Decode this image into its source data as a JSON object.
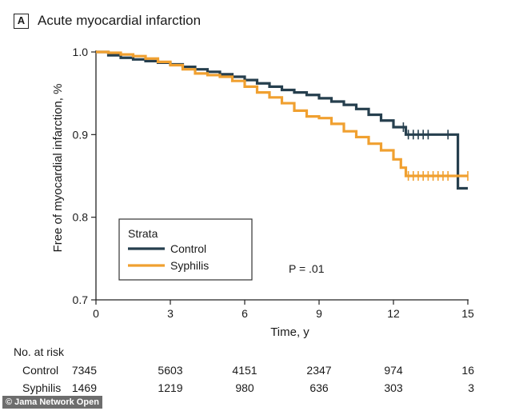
{
  "panel_label": "A",
  "chart_data": {
    "type": "line",
    "title": "Acute myocardial infarction",
    "xlabel": "Time, y",
    "ylabel": "Free of myocardial infarction, %",
    "xlim": [
      0,
      15
    ],
    "ylim": [
      0.7,
      1.0
    ],
    "x_ticks": [
      "0",
      "3",
      "6",
      "9",
      "12",
      "15"
    ],
    "y_ticks": [
      "0.7",
      "0.8",
      "0.9",
      "1.0"
    ],
    "grid": false,
    "legend": {
      "title": "Strata",
      "placement": "bottom-left"
    },
    "annotation": "P = .01",
    "series": [
      {
        "name": "Control",
        "color": "#263f4e",
        "x": [
          0,
          0.5,
          1,
          1.5,
          2,
          2.5,
          3,
          3.5,
          4,
          4.5,
          5,
          5.5,
          6,
          6.5,
          7,
          7.5,
          8,
          8.5,
          9,
          9.5,
          10,
          10.5,
          11,
          11.5,
          12,
          12.5,
          13,
          13.5,
          14,
          14.6,
          14.6,
          15
        ],
        "y": [
          1.0,
          0.996,
          0.993,
          0.991,
          0.989,
          0.987,
          0.985,
          0.982,
          0.979,
          0.976,
          0.973,
          0.97,
          0.966,
          0.962,
          0.958,
          0.954,
          0.951,
          0.948,
          0.944,
          0.94,
          0.936,
          0.931,
          0.924,
          0.917,
          0.909,
          0.9,
          0.9,
          0.9,
          0.9,
          0.9,
          0.835,
          0.835
        ],
        "censor_x": [
          12.4,
          12.6,
          12.8,
          13.0,
          13.2,
          13.4,
          14.2
        ]
      },
      {
        "name": "Syphilis",
        "color": "#f0a030",
        "x": [
          0,
          0.5,
          1,
          1.5,
          2,
          2.5,
          3,
          3.5,
          4,
          4.5,
          5,
          5.5,
          6,
          6.5,
          7,
          7.5,
          8,
          8.5,
          9,
          9.5,
          10,
          10.5,
          11,
          11.5,
          12,
          12.3,
          12.5,
          13,
          14,
          15
        ],
        "y": [
          1.0,
          0.999,
          0.997,
          0.995,
          0.992,
          0.988,
          0.984,
          0.979,
          0.974,
          0.972,
          0.97,
          0.965,
          0.958,
          0.951,
          0.945,
          0.938,
          0.929,
          0.922,
          0.92,
          0.913,
          0.904,
          0.897,
          0.889,
          0.881,
          0.87,
          0.86,
          0.85,
          0.85,
          0.85,
          0.85
        ],
        "censor_x": [
          12.6,
          12.8,
          13.0,
          13.2,
          13.4,
          13.6,
          13.8,
          14.0,
          14.2,
          15.0
        ]
      }
    ]
  },
  "risk_table": {
    "title": "No. at risk",
    "time_points": [
      0,
      3,
      6,
      9,
      12,
      15
    ],
    "rows": [
      {
        "label": "Control",
        "values": [
          "7345",
          "5603",
          "4151",
          "2347",
          "974",
          "16"
        ]
      },
      {
        "label": "Syphilis",
        "values": [
          "1469",
          "1219",
          "980",
          "636",
          "303",
          "3"
        ]
      }
    ]
  },
  "watermark": "© Jama Network Open"
}
